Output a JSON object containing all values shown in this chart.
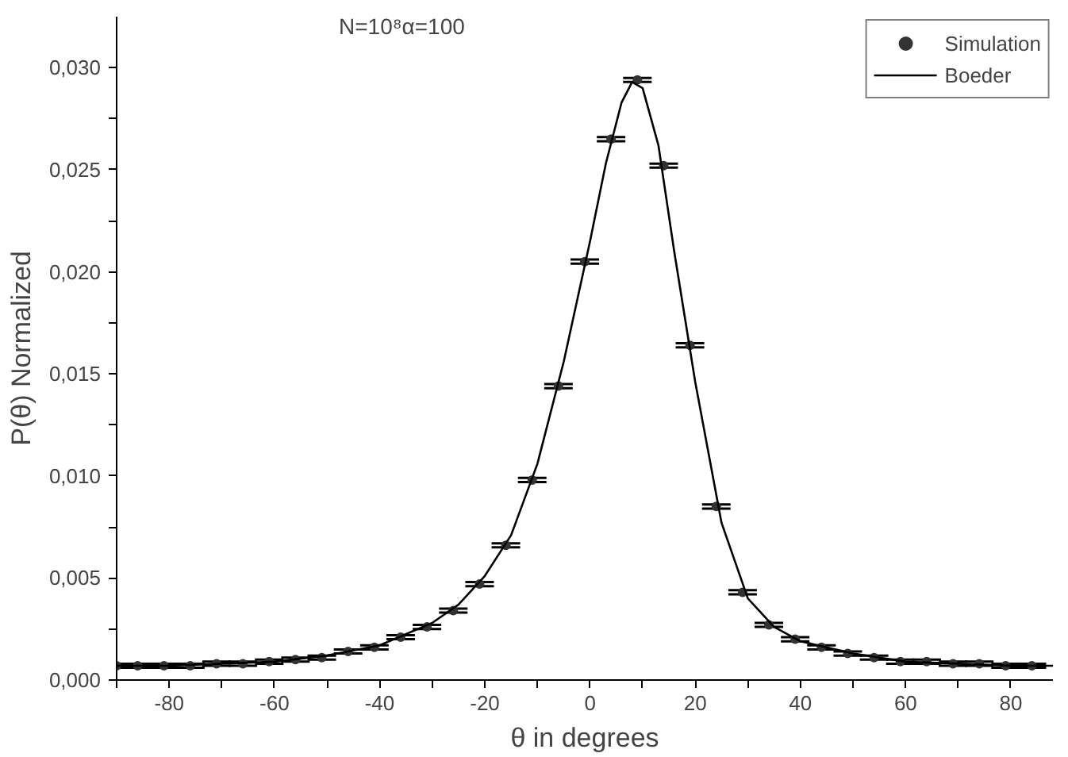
{
  "chart_data": {
    "type": "scatter",
    "xlabel": "θ in degrees",
    "ylabel": "P(θ) Normalized",
    "annotations": [
      "N=10⁸α=100"
    ],
    "xlim": [
      -90,
      88
    ],
    "ylim": [
      0,
      0.0325
    ],
    "xticks": [
      {
        "value": -90,
        "label": null
      },
      -80,
      {
        "value": -70,
        "label": null
      },
      -60,
      {
        "value": -50,
        "label": null
      },
      -40,
      {
        "value": -30,
        "label": null
      },
      -20,
      {
        "value": -10,
        "label": null
      },
      0,
      {
        "value": 10,
        "label": null
      },
      20,
      {
        "value": 30,
        "label": null
      },
      40,
      {
        "value": 50,
        "label": null
      },
      60,
      {
        "value": 70,
        "label": null
      },
      80
    ],
    "yticks": [
      {
        "value": 0,
        "label": "0,000"
      },
      {
        "value": 0.0025,
        "label": null
      },
      {
        "value": 0.005,
        "label": "0,005"
      },
      {
        "value": 0.0075,
        "label": null
      },
      {
        "value": 0.01,
        "label": "0,010"
      },
      {
        "value": 0.0125,
        "label": null
      },
      {
        "value": 0.015,
        "label": "0,015"
      },
      {
        "value": 0.0175,
        "label": null
      },
      {
        "value": 0.02,
        "label": "0,020"
      },
      {
        "value": 0.0225,
        "label": null
      },
      {
        "value": 0.025,
        "label": "0,025"
      },
      {
        "value": 0.0275,
        "label": null
      },
      {
        "value": 0.03,
        "label": "0,030"
      }
    ],
    "grid": false,
    "legend": "top right",
    "series": [
      {
        "name": "Simulation",
        "marker": "circle",
        "color": "#333333",
        "x": [
          -90,
          -86,
          -81,
          -76,
          -71,
          -66,
          -61,
          -56,
          -51,
          -46,
          -41,
          -36,
          -31,
          -26,
          -21,
          -16,
          -11,
          -6,
          -1,
          4,
          9,
          14,
          19,
          24,
          29,
          34,
          39,
          44,
          49,
          54,
          59,
          64,
          69,
          74,
          79,
          84
        ],
        "values": [
          0.0007,
          0.0007,
          0.0007,
          0.0007,
          0.0008,
          0.0008,
          0.0009,
          0.001,
          0.0011,
          0.0014,
          0.0016,
          0.0021,
          0.0026,
          0.0034,
          0.0047,
          0.0066,
          0.0098,
          0.0144,
          0.0205,
          0.0265,
          0.0294,
          0.0252,
          0.0164,
          0.0085,
          0.0043,
          0.0027,
          0.002,
          0.0016,
          0.0013,
          0.0011,
          0.0009,
          0.0009,
          0.0008,
          0.0008,
          0.0007,
          0.0007
        ],
        "errors": [
          0.0001,
          0.0001,
          0.0001,
          0.0001,
          0.0001,
          0.0001,
          0.0001,
          0.0001,
          0.0001,
          0.0001,
          0.0001,
          0.0001,
          0.0001,
          0.0001,
          0.0001,
          0.0001,
          0.0001,
          0.0001,
          0.0001,
          0.0001,
          0.0001,
          0.0001,
          0.0001,
          0.0001,
          0.0001,
          0.0001,
          0.0001,
          0.0001,
          0.0001,
          0.0001,
          0.0001,
          0.0001,
          0.0001,
          0.0001,
          0.0001,
          0.0001
        ]
      },
      {
        "name": "Boeder",
        "type": "line",
        "marker": "none",
        "line_style": "solid",
        "color": "#000000",
        "x": [
          -90,
          -80,
          -70,
          -60,
          -50,
          -40,
          -30,
          -25,
          -20,
          -15,
          -10,
          -5,
          0,
          3,
          6,
          8,
          10,
          13,
          16,
          20,
          25,
          30,
          35,
          40,
          50,
          60,
          70,
          80,
          88
        ],
        "values": [
          0.0007,
          0.0007,
          0.0008,
          0.0009,
          0.0012,
          0.0017,
          0.0028,
          0.0037,
          0.0051,
          0.0071,
          0.0106,
          0.0156,
          0.0215,
          0.0253,
          0.0283,
          0.0293,
          0.029,
          0.0262,
          0.021,
          0.0146,
          0.0077,
          0.004,
          0.0026,
          0.0019,
          0.0013,
          0.0009,
          0.0008,
          0.0007,
          0.0007
        ]
      }
    ]
  }
}
